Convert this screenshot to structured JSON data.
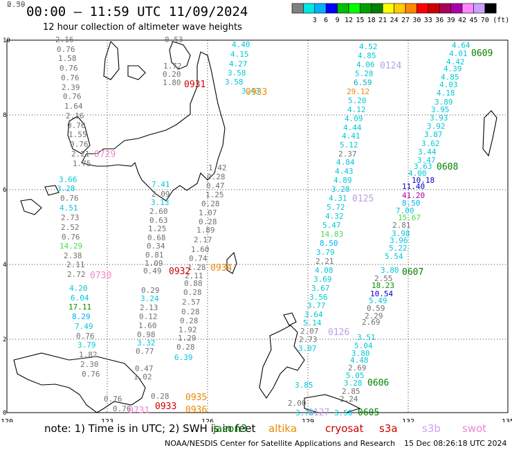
{
  "header": {
    "title": "00:00 – 11:59 UTC 11/09/2024",
    "subtitle": "12 hour collection of altimeter wave heights"
  },
  "colorbar": {
    "unit": "(ft)",
    "swatches": [
      {
        "color": "#808080",
        "label": ""
      },
      {
        "color": "#00e5e5",
        "label": "3"
      },
      {
        "color": "#00b0ff",
        "label": "6"
      },
      {
        "color": "#0000ff",
        "label": "9"
      },
      {
        "color": "#00c000",
        "label": "12"
      },
      {
        "color": "#00ff00",
        "label": "15"
      },
      {
        "color": "#00a000",
        "label": "18"
      },
      {
        "color": "#008000",
        "label": "21"
      },
      {
        "color": "#ffff00",
        "label": "24"
      },
      {
        "color": "#ffcc00",
        "label": "27"
      },
      {
        "color": "#ff8800",
        "label": "30"
      },
      {
        "color": "#ff0000",
        "label": "33"
      },
      {
        "color": "#cc0000",
        "label": "36"
      },
      {
        "color": "#aa0055",
        "label": "39"
      },
      {
        "color": "#aa00aa",
        "label": "42"
      },
      {
        "color": "#ff88ff",
        "label": "45"
      },
      {
        "color": "#c8a0ff",
        "label": "70"
      },
      {
        "color": "#000000",
        "label": ""
      }
    ]
  },
  "map": {
    "x_ticks": [
      "120",
      "123",
      "126",
      "129",
      "132",
      "135"
    ],
    "y_ticks": [
      "10",
      "8",
      "6",
      "4",
      "2",
      "0"
    ],
    "passes": [
      {
        "label": "0931",
        "color": "#cc0000"
      },
      {
        "label": "0933",
        "color": "#ee8800"
      },
      {
        "label": "0729",
        "color": "#ee88cc"
      },
      {
        "label": "0730",
        "color": "#ee88cc"
      },
      {
        "label": "0932",
        "color": "#cc0000"
      },
      {
        "label": "0934",
        "color": "#ee8800"
      },
      {
        "label": "0731",
        "color": "#ee88cc"
      },
      {
        "label": "0933",
        "color": "#cc0000"
      },
      {
        "label": "0935",
        "color": "#ee8800"
      },
      {
        "label": "0936",
        "color": "#ee8800"
      },
      {
        "label": "0124",
        "color": "#b8a0e8"
      },
      {
        "label": "0125",
        "color": "#b8a0e8"
      },
      {
        "label": "0126",
        "color": "#b8a0e8"
      },
      {
        "label": "0127",
        "color": "#b8a0e8"
      },
      {
        "label": "0609",
        "color": "#008000"
      },
      {
        "label": "0608",
        "color": "#008000"
      },
      {
        "label": "0607",
        "color": "#008000"
      },
      {
        "label": "0606",
        "color": "#008000"
      },
      {
        "label": "0605",
        "color": "#008000"
      }
    ],
    "values": [
      {
        "v": "2.16",
        "c": "#707070"
      },
      {
        "v": "0.76",
        "c": "#707070"
      },
      {
        "v": "1.58",
        "c": "#707070"
      },
      {
        "v": "0.76",
        "c": "#707070"
      },
      {
        "v": "0.76",
        "c": "#707070"
      },
      {
        "v": "2.39",
        "c": "#707070"
      },
      {
        "v": "0.76",
        "c": "#707070"
      },
      {
        "v": "1.64",
        "c": "#707070"
      },
      {
        "v": "2.16",
        "c": "#707070"
      },
      {
        "v": "0.76",
        "c": "#707070"
      },
      {
        "v": "1.55",
        "c": "#707070"
      },
      {
        "v": "0.76",
        "c": "#707070"
      },
      {
        "v": "2.21",
        "c": "#707070"
      },
      {
        "v": "1.75",
        "c": "#707070"
      },
      {
        "v": "3.66",
        "c": "#00c8d8"
      },
      {
        "v": "3.28",
        "c": "#00c8d8"
      },
      {
        "v": "0.76",
        "c": "#707070"
      },
      {
        "v": "4.51",
        "c": "#00c8d8"
      },
      {
        "v": "2.73",
        "c": "#707070"
      },
      {
        "v": "2.52",
        "c": "#707070"
      },
      {
        "v": "0.76",
        "c": "#707070"
      },
      {
        "v": "14.29",
        "c": "#44dd44"
      },
      {
        "v": "2.38",
        "c": "#707070"
      },
      {
        "v": "2.11",
        "c": "#707070"
      },
      {
        "v": "2.72",
        "c": "#707070"
      },
      {
        "v": "4.20",
        "c": "#00c8d8"
      },
      {
        "v": "6.04",
        "c": "#00c8d8"
      },
      {
        "v": "17.11",
        "c": "#009000"
      },
      {
        "v": "8.29",
        "c": "#00b0ff"
      },
      {
        "v": "7.49",
        "c": "#00c8d8"
      },
      {
        "v": "0.76",
        "c": "#707070"
      },
      {
        "v": "3.79",
        "c": "#00c8d8"
      },
      {
        "v": "1.82",
        "c": "#707070"
      },
      {
        "v": "2.30",
        "c": "#707070"
      },
      {
        "v": "0.76",
        "c": "#707070"
      },
      {
        "v": "0.76",
        "c": "#707070"
      },
      {
        "v": "0.76",
        "c": "#707070"
      },
      {
        "v": "0.53",
        "c": "#707070"
      },
      {
        "v": "1.72",
        "c": "#707070"
      },
      {
        "v": "0.20",
        "c": "#707070"
      },
      {
        "v": "1.80",
        "c": "#707070"
      },
      {
        "v": "7.41",
        "c": "#00c8d8"
      },
      {
        "v": "2.09",
        "c": "#707070"
      },
      {
        "v": "3.13",
        "c": "#00c8d8"
      },
      {
        "v": "2.60",
        "c": "#707070"
      },
      {
        "v": "0.63",
        "c": "#707070"
      },
      {
        "v": "1.25",
        "c": "#707070"
      },
      {
        "v": "0.68",
        "c": "#707070"
      },
      {
        "v": "0.34",
        "c": "#707070"
      },
      {
        "v": "0.81",
        "c": "#707070"
      },
      {
        "v": "1.09",
        "c": "#707070"
      },
      {
        "v": "0.49",
        "c": "#707070"
      },
      {
        "v": "0.29",
        "c": "#707070"
      },
      {
        "v": "3.24",
        "c": "#00c8d8"
      },
      {
        "v": "2.13",
        "c": "#707070"
      },
      {
        "v": "0.12",
        "c": "#707070"
      },
      {
        "v": "1.60",
        "c": "#707070"
      },
      {
        "v": "0.98",
        "c": "#707070"
      },
      {
        "v": "3.32",
        "c": "#00c8d8"
      },
      {
        "v": "0.77",
        "c": "#707070"
      },
      {
        "v": "0.47",
        "c": "#707070"
      },
      {
        "v": "1.02",
        "c": "#707070"
      },
      {
        "v": "0.28",
        "c": "#707070"
      },
      {
        "v": "1.42",
        "c": "#707070"
      },
      {
        "v": "0.28",
        "c": "#707070"
      },
      {
        "v": "0.47",
        "c": "#707070"
      },
      {
        "v": "1.25",
        "c": "#707070"
      },
      {
        "v": "0.28",
        "c": "#707070"
      },
      {
        "v": "1.07",
        "c": "#707070"
      },
      {
        "v": "0.28",
        "c": "#707070"
      },
      {
        "v": "1.89",
        "c": "#707070"
      },
      {
        "v": "2.17",
        "c": "#707070"
      },
      {
        "v": "1.60",
        "c": "#707070"
      },
      {
        "v": "0.74",
        "c": "#707070"
      },
      {
        "v": "1.28",
        "c": "#707070"
      },
      {
        "v": "2.11",
        "c": "#707070"
      },
      {
        "v": "0.88",
        "c": "#707070"
      },
      {
        "v": "0.28",
        "c": "#707070"
      },
      {
        "v": "2.57",
        "c": "#707070"
      },
      {
        "v": "0.28",
        "c": "#707070"
      },
      {
        "v": "0.28",
        "c": "#707070"
      },
      {
        "v": "1.92",
        "c": "#707070"
      },
      {
        "v": "1.29",
        "c": "#707070"
      },
      {
        "v": "0.28",
        "c": "#707070"
      },
      {
        "v": "6.39",
        "c": "#00c8d8"
      },
      {
        "v": "4.40",
        "c": "#00c8d8"
      },
      {
        "v": "4.15",
        "c": "#00c8d8"
      },
      {
        "v": "4.27",
        "c": "#00c8d8"
      },
      {
        "v": "3.58",
        "c": "#00c8d8"
      },
      {
        "v": "3.58",
        "c": "#00c8d8"
      },
      {
        "v": "3.43",
        "c": "#00c8d8"
      },
      {
        "v": "4.52",
        "c": "#00c8d8"
      },
      {
        "v": "4.85",
        "c": "#00c8d8"
      },
      {
        "v": "4.06",
        "c": "#00c8d8"
      },
      {
        "v": "5.28",
        "c": "#00c8d8"
      },
      {
        "v": "6.59",
        "c": "#00b0c0"
      },
      {
        "v": "29.12",
        "c": "#ee8800"
      },
      {
        "v": "5.20",
        "c": "#00c8d8"
      },
      {
        "v": "4.12",
        "c": "#00c8d8"
      },
      {
        "v": "4.09",
        "c": "#00c8d8"
      },
      {
        "v": "4.44",
        "c": "#00c8d8"
      },
      {
        "v": "4.41",
        "c": "#00c8d8"
      },
      {
        "v": "5.12",
        "c": "#00c8d8"
      },
      {
        "v": "2.37",
        "c": "#707070"
      },
      {
        "v": "4.84",
        "c": "#00c8d8"
      },
      {
        "v": "4.43",
        "c": "#00c8d8"
      },
      {
        "v": "4.89",
        "c": "#00c8d8"
      },
      {
        "v": "3.28",
        "c": "#00c8d8"
      },
      {
        "v": "4.31",
        "c": "#00c8d8"
      },
      {
        "v": "5.72",
        "c": "#00c8d8"
      },
      {
        "v": "4.32",
        "c": "#00c8d8"
      },
      {
        "v": "5.47",
        "c": "#00c8d8"
      },
      {
        "v": "14.83",
        "c": "#44dd44"
      },
      {
        "v": "8.50",
        "c": "#00b0ff"
      },
      {
        "v": "3.79",
        "c": "#00c8d8"
      },
      {
        "v": "2.21",
        "c": "#707070"
      },
      {
        "v": "4.08",
        "c": "#00c8d8"
      },
      {
        "v": "3.69",
        "c": "#00c8d8"
      },
      {
        "v": "3.67",
        "c": "#00c8d8"
      },
      {
        "v": "3.56",
        "c": "#00c8d8"
      },
      {
        "v": "3.77",
        "c": "#00c8d8"
      },
      {
        "v": "3.64",
        "c": "#00c8d8"
      },
      {
        "v": "5.14",
        "c": "#00c8d8"
      },
      {
        "v": "2.07",
        "c": "#707070"
      },
      {
        "v": "2.73",
        "c": "#707070"
      },
      {
        "v": "3.07",
        "c": "#00c8d8"
      },
      {
        "v": "4.64",
        "c": "#00c8d8"
      },
      {
        "v": "4.01",
        "c": "#00c8d8"
      },
      {
        "v": "4.42",
        "c": "#00c8d8"
      },
      {
        "v": "4.39",
        "c": "#00c8d8"
      },
      {
        "v": "4.85",
        "c": "#00c8d8"
      },
      {
        "v": "4.03",
        "c": "#00c8d8"
      },
      {
        "v": "4.18",
        "c": "#00c8d8"
      },
      {
        "v": "3.89",
        "c": "#00c8d8"
      },
      {
        "v": "3.95",
        "c": "#00c8d8"
      },
      {
        "v": "3.93",
        "c": "#00c8d8"
      },
      {
        "v": "3.92",
        "c": "#00c8d8"
      },
      {
        "v": "3.87",
        "c": "#00c8d8"
      },
      {
        "v": "3.62",
        "c": "#00c8d8"
      },
      {
        "v": "3.44",
        "c": "#00c8d8"
      },
      {
        "v": "3.47",
        "c": "#00c8d8"
      },
      {
        "v": "3.63",
        "c": "#00c8d8"
      },
      {
        "v": "4.00",
        "c": "#00c8d8"
      },
      {
        "v": "10.18",
        "c": "#0000cc"
      },
      {
        "v": "11.40",
        "c": "#0000cc"
      },
      {
        "v": "41.20",
        "c": "#aa00aa"
      },
      {
        "v": "8.50",
        "c": "#00b0ff"
      },
      {
        "v": "7.00",
        "c": "#00c8d8"
      },
      {
        "v": "15.67",
        "c": "#44dd44"
      },
      {
        "v": "2.81",
        "c": "#707070"
      },
      {
        "v": "3.98",
        "c": "#00c8d8"
      },
      {
        "v": "3.96",
        "c": "#00c8d8"
      },
      {
        "v": "5.22",
        "c": "#00c8d8"
      },
      {
        "v": "5.54",
        "c": "#00c8d8"
      },
      {
        "v": "3.80",
        "c": "#00c8d8"
      },
      {
        "v": "2.55",
        "c": "#707070"
      },
      {
        "v": "18.23",
        "c": "#009000"
      },
      {
        "v": "10.54",
        "c": "#0000cc"
      },
      {
        "v": "5.49",
        "c": "#00c8d8"
      },
      {
        "v": "0.59",
        "c": "#707070"
      },
      {
        "v": "2.29",
        "c": "#707070"
      },
      {
        "v": "2.69",
        "c": "#707070"
      },
      {
        "v": "3.51",
        "c": "#00c8d8"
      },
      {
        "v": "5.04",
        "c": "#00c8d8"
      },
      {
        "v": "3.80",
        "c": "#00c8d8"
      },
      {
        "v": "4.48",
        "c": "#00c8d8"
      },
      {
        "v": "2.69",
        "c": "#707070"
      },
      {
        "v": "5.05",
        "c": "#00c8d8"
      },
      {
        "v": "3.28",
        "c": "#00c8d8"
      },
      {
        "v": "2.85",
        "c": "#707070"
      },
      {
        "v": "2.24",
        "c": "#707070"
      },
      {
        "v": "3.85",
        "c": "#00c8d8"
      },
      {
        "v": "2.00",
        "c": "#707070"
      },
      {
        "v": "3.76",
        "c": "#00c8d8"
      },
      {
        "v": "3.58",
        "c": "#00c8d8"
      },
      {
        "v": "0.59",
        "c": "#707070"
      },
      {
        "v": "2.30",
        "c": "#707070"
      }
    ]
  },
  "footer": {
    "note": "note: 1) Time is in UTC; 2) SWH is in feet",
    "satellites": [
      {
        "name": "jason3",
        "color": "#008000"
      },
      {
        "name": "altika",
        "color": "#ee8800"
      },
      {
        "name": "cryosat",
        "color": "#cc0000"
      },
      {
        "name": "s3a",
        "color": "#cc0000"
      },
      {
        "name": "s3b",
        "color": "#c8a0ff"
      },
      {
        "name": "swot",
        "color": "#ee88cc"
      }
    ],
    "credits": "NOAA/NESDIS Center for Satellite Applications and Research",
    "timestamp": "15 Dec 08:26:18 UTC 2024"
  }
}
